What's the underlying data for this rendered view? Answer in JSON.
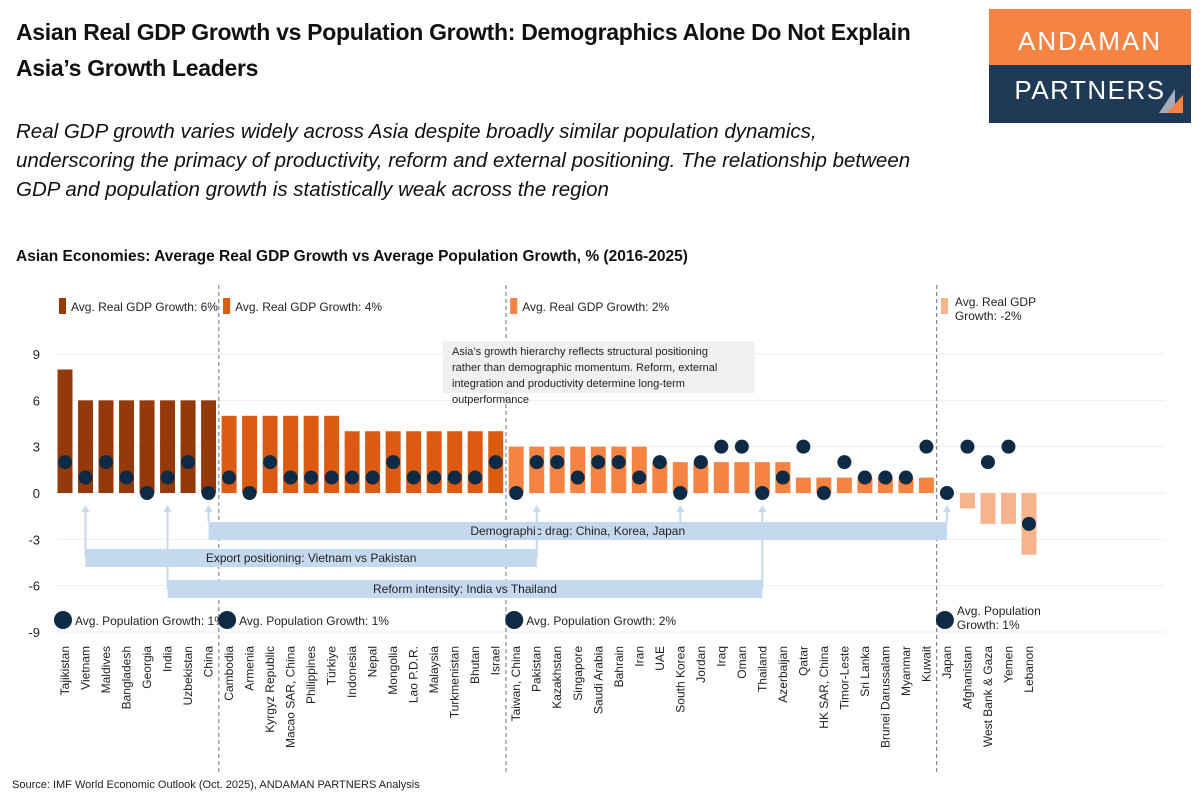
{
  "title": "Asian Real GDP Growth vs Population Growth: Demographics Alone Do Not Explain Asia’s Growth Leaders",
  "subtitle": "Real GDP growth varies widely across Asia despite broadly similar population dynamics, underscoring the primacy of productivity, reform and external positioning. The relationship between GDP and population growth is statistically weak across the region",
  "logo": {
    "line1": "ANDAMAN",
    "line2": "PARTNERS"
  },
  "source": "Source: IMF World Economic Outlook (Oct. 2025), ANDAMAN PARTNERS Analysis",
  "chart_data": {
    "type": "bar",
    "title": "Asian Economies: Average Real GDP Growth vs Average Population Growth, % (2016-2025)",
    "ylim": [
      -9,
      9
    ],
    "yticks": [
      9,
      6,
      3,
      0,
      -3,
      -6,
      -9
    ],
    "grid": true,
    "colors": {
      "group1": "#943a0a",
      "group2": "#dc5a12",
      "group3": "#f58442",
      "group4": "#f7b48c",
      "population": "#0f2a44",
      "annotation": "#c5d9ee"
    },
    "groups": [
      {
        "gdp_label": "Avg. Real GDP Growth: 6%",
        "pop_label": "Avg. Population Growth: 1%",
        "color": "#943a0a",
        "categories": [
          "Tajikistan",
          "Vietnam",
          "Maldives",
          "Bangladesh",
          "Georgia",
          "India",
          "Uzbekistan",
          "China"
        ],
        "gdp": [
          8,
          6,
          6,
          6,
          6,
          6,
          6,
          6
        ],
        "population": [
          2,
          1,
          2,
          1,
          0,
          1,
          2,
          0
        ]
      },
      {
        "gdp_label": "Avg. Real GDP Growth: 4%",
        "pop_label": "Avg. Population Growth: 1%",
        "color": "#dc5a12",
        "categories": [
          "Cambodia",
          "Armenia",
          "Kyrgyz Republic",
          "Macao SAR, China",
          "Philippines",
          "Türkiye",
          "Indonesia",
          "Nepal",
          "Mongolia",
          "Lao P.D.R.",
          "Malaysia",
          "Turkmenistan",
          "Bhutan",
          "Israel"
        ],
        "gdp": [
          5,
          5,
          5,
          5,
          5,
          5,
          4,
          4,
          4,
          4,
          4,
          4,
          4,
          4
        ],
        "population": [
          1,
          0,
          2,
          1,
          1,
          1,
          1,
          1,
          2,
          1,
          1,
          1,
          1,
          2
        ]
      },
      {
        "gdp_label": "Avg. Real GDP Growth: 2%",
        "pop_label": "Avg. Population Growth: 2%",
        "color": "#f58442",
        "categories": [
          "Taiwan, China",
          "Pakistan",
          "Kazakhstan",
          "Singapore",
          "Saudi Arabia",
          "Bahrain",
          "Iran",
          "UAE",
          "South Korea",
          "Jordan",
          "Iraq",
          "Oman",
          "Thailand",
          "Azerbaijan",
          "Qatar",
          "HK SAR, China",
          "Timor-Leste",
          "Sri Lanka",
          "Brunei Darussalam",
          "Myanmar",
          "Kuwait"
        ],
        "gdp": [
          3,
          3,
          3,
          3,
          3,
          3,
          3,
          2,
          2,
          2,
          2,
          2,
          2,
          2,
          1,
          1,
          1,
          1,
          1,
          1,
          1
        ],
        "population": [
          0,
          2,
          2,
          1,
          2,
          2,
          1,
          2,
          0,
          2,
          3,
          3,
          0,
          1,
          3,
          0,
          2,
          1,
          1,
          1,
          3
        ]
      },
      {
        "gdp_label": "Avg. Real GDP Growth: -2%",
        "pop_label": "Avg. Population Growth: 1%",
        "color": "#f7b48c",
        "categories": [
          "Japan",
          "Afghanistan",
          "West Bank & Gaza",
          "Yemen",
          "Lebanon"
        ],
        "gdp": [
          0,
          -1,
          -2,
          -2,
          -4
        ],
        "population": [
          0,
          3,
          2,
          3,
          -2
        ]
      }
    ],
    "note": "Asia’s growth hierarchy reflects structural positioning rather than demographic momentum. Reform, external integration and productivity determine long-term outperformance",
    "annotations": [
      {
        "label": "Demographic drag: China, Korea, Japan",
        "countries": [
          "China",
          "South Korea",
          "Japan"
        ]
      },
      {
        "label": "Export positioning: Vietnam vs Pakistan",
        "countries": [
          "Vietnam",
          "Pakistan"
        ]
      },
      {
        "label": "Reform intensity: India vs Thailand",
        "countries": [
          "India",
          "Thailand"
        ]
      }
    ]
  }
}
